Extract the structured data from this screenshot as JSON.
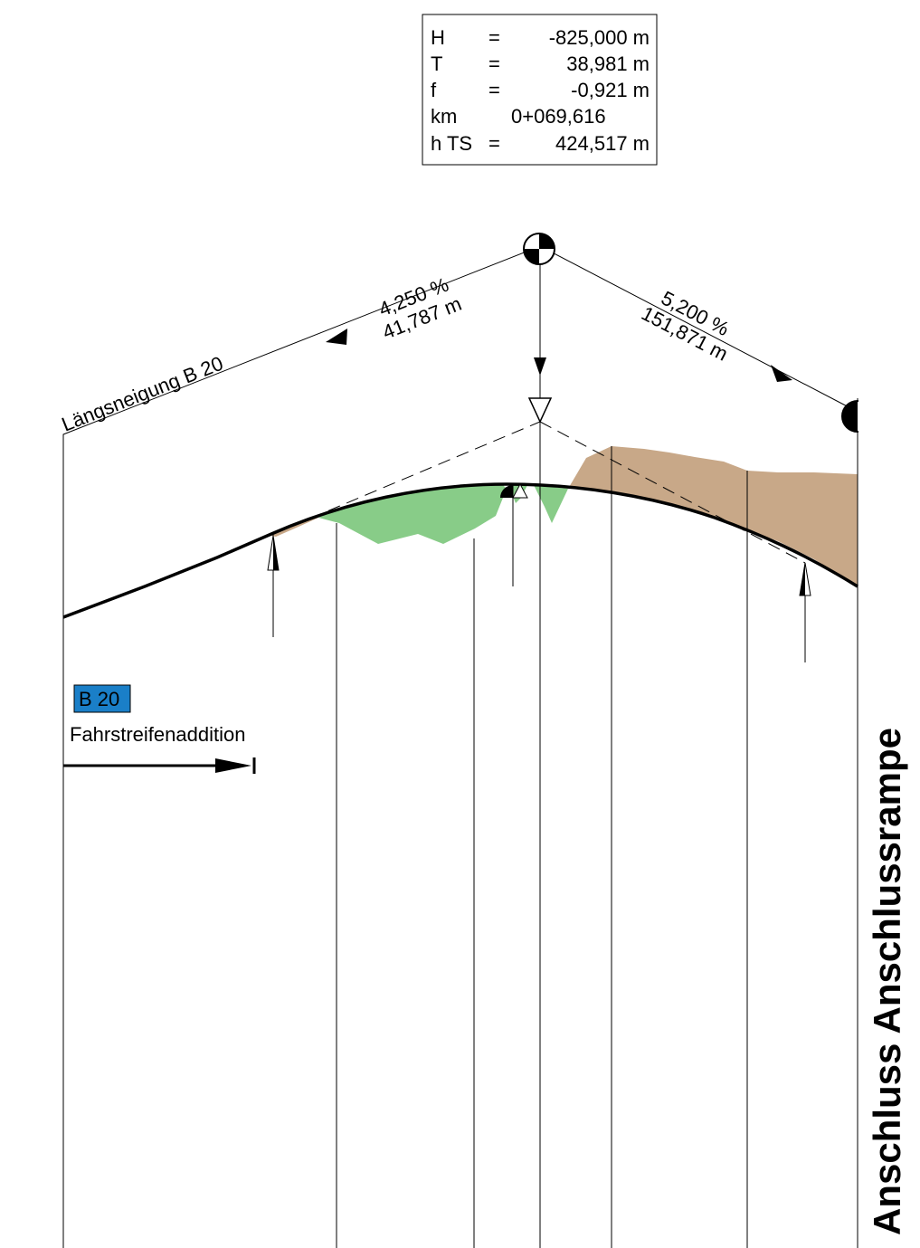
{
  "info_box": {
    "rows": [
      {
        "label": "H",
        "sep": "=",
        "value": "-825,000 m"
      },
      {
        "label": "T",
        "sep": "=",
        "value": "38,981 m"
      },
      {
        "label": "f",
        "sep": "=",
        "value": "-0,921 m"
      },
      {
        "label": "km",
        "sep": "",
        "value": "0+069,616"
      },
      {
        "label": "h TS",
        "sep": "=",
        "value": "424,517 m"
      }
    ]
  },
  "gradient_left": {
    "slope": "4,250 %",
    "length": "41,787 m"
  },
  "gradient_right": {
    "slope": "5,200 %",
    "length": "151,871 m"
  },
  "profile_label": "Längsneigung B 20",
  "road_tag": {
    "label": "B 20",
    "color": "#1a7fc8"
  },
  "lane_label": "Fahrstreifenaddition",
  "side_title": "Anschluss Anschlussrampe",
  "colors": {
    "cut": "#88cc88",
    "fill": "#c8a888",
    "line": "#000000"
  }
}
